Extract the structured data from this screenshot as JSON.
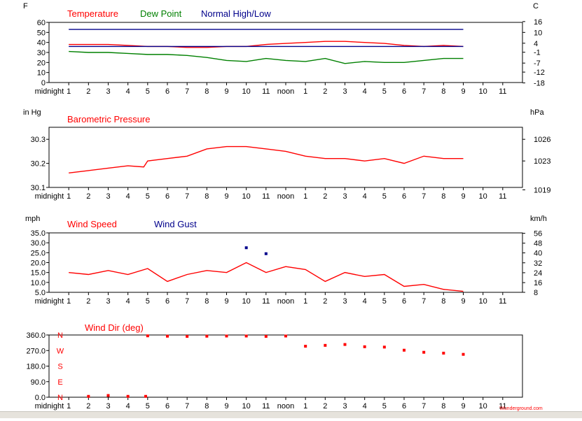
{
  "chart_data": [
    {
      "type": "line",
      "title": "",
      "left_unit": "F",
      "right_unit": "C",
      "ylim": [
        0,
        60
      ],
      "y_ticks": [
        0,
        10,
        20,
        30,
        40,
        50,
        60
      ],
      "y_tick_labels": [
        "0",
        "10",
        "20",
        "30",
        "40",
        "50",
        "60"
      ],
      "right_ticks": [
        {
          "label": "16",
          "value": 60.8
        },
        {
          "label": "10",
          "value": 50
        },
        {
          "label": "4",
          "value": 39.2
        },
        {
          "label": "-1",
          "value": 30.2
        },
        {
          "label": "-7",
          "value": 19.4
        },
        {
          "label": "-12",
          "value": 10.4
        },
        {
          "label": "-18",
          "value": -0.4
        }
      ],
      "legend": [
        {
          "label": "Temperature",
          "color": "#ff0000"
        },
        {
          "label": "Dew Point",
          "color": "#008000"
        },
        {
          "label": "Normal High/Low",
          "color": "#00008b"
        }
      ],
      "series": [
        {
          "name": "Temperature",
          "color": "#ff0000",
          "x": [
            1,
            2,
            3,
            4,
            5,
            6,
            7,
            8,
            9,
            10,
            11,
            12,
            13,
            14,
            15,
            16,
            17,
            18,
            19,
            20,
            21
          ],
          "values": [
            38,
            38,
            38,
            37,
            36,
            36,
            35,
            35,
            36,
            36,
            38,
            39,
            40,
            41,
            41,
            40,
            39,
            37,
            36,
            37,
            36
          ]
        },
        {
          "name": "Dew Point",
          "color": "#008000",
          "x": [
            1,
            2,
            3,
            4,
            5,
            6,
            7,
            8,
            9,
            10,
            11,
            12,
            13,
            14,
            15,
            16,
            17,
            18,
            19,
            20,
            21
          ],
          "values": [
            31,
            30,
            30,
            29,
            28,
            28,
            27,
            25,
            22,
            21,
            24,
            22,
            21,
            24,
            19,
            21,
            20,
            20,
            22,
            24,
            24
          ]
        },
        {
          "name": "Normal High",
          "color": "#00008b",
          "x": [
            1,
            21
          ],
          "values": [
            53,
            53
          ]
        },
        {
          "name": "Normal Low",
          "color": "#00008b",
          "x": [
            1,
            21
          ],
          "values": [
            36,
            36
          ]
        }
      ]
    },
    {
      "type": "line",
      "title": "",
      "left_unit": "in Hg",
      "right_unit": "hPa",
      "ylim": [
        30.1,
        30.35
      ],
      "y_ticks": [
        30.1,
        30.2,
        30.3
      ],
      "y_tick_labels": [
        "30.1",
        "30.2",
        "30.3"
      ],
      "right_ticks": [
        {
          "label": "1026",
          "value": 30.3
        },
        {
          "label": "1023",
          "value": 30.21
        },
        {
          "label": "1019",
          "value": 30.09
        }
      ],
      "legend": [
        {
          "label": "Barometric Pressure",
          "color": "#ff0000"
        }
      ],
      "series": [
        {
          "name": "Barometric Pressure",
          "color": "#ff0000",
          "x": [
            1,
            2,
            3,
            4,
            4.8,
            5,
            6,
            7,
            8,
            9,
            10,
            11,
            12,
            13,
            14,
            15,
            16,
            17,
            18,
            19,
            20,
            21
          ],
          "values": [
            30.16,
            30.17,
            30.18,
            30.19,
            30.185,
            30.21,
            30.22,
            30.23,
            30.26,
            30.27,
            30.27,
            30.26,
            30.25,
            30.23,
            30.22,
            30.22,
            30.21,
            30.22,
            30.2,
            30.23,
            30.22,
            30.22
          ]
        }
      ]
    },
    {
      "type": "line",
      "title": "",
      "left_unit": "mph",
      "right_unit": "km/h",
      "ylim": [
        5,
        35
      ],
      "y_ticks": [
        5,
        10,
        15,
        20,
        25,
        30,
        35
      ],
      "y_tick_labels": [
        "5.0",
        "10.0",
        "15.0",
        "20.0",
        "25.0",
        "30.0",
        "35.0"
      ],
      "right_ticks": [
        {
          "label": "56",
          "value": 34.8
        },
        {
          "label": "48",
          "value": 29.8
        },
        {
          "label": "40",
          "value": 24.9
        },
        {
          "label": "32",
          "value": 19.9
        },
        {
          "label": "24",
          "value": 14.9
        },
        {
          "label": "16",
          "value": 9.9
        },
        {
          "label": "8",
          "value": 5.0
        }
      ],
      "legend": [
        {
          "label": "Wind Speed",
          "color": "#ff0000"
        },
        {
          "label": "Wind Gust",
          "color": "#00008b"
        }
      ],
      "series": [
        {
          "name": "Wind Speed",
          "color": "#ff0000",
          "x": [
            1,
            2,
            3,
            4,
            5,
            6,
            7,
            8,
            9,
            10,
            11,
            12,
            13,
            14,
            15,
            16,
            17,
            18,
            19,
            20,
            21
          ],
          "values": [
            15,
            14,
            16,
            14,
            17,
            10.5,
            14,
            16,
            15,
            20,
            15,
            18,
            16.5,
            10.5,
            15,
            13,
            14,
            8,
            9,
            6.5,
            5.5
          ]
        },
        {
          "name": "Wind Gust",
          "color": "#00008b",
          "markers_only": true,
          "x": [
            10,
            11
          ],
          "values": [
            27.5,
            24.5
          ]
        }
      ]
    },
    {
      "type": "scatter",
      "title": "",
      "ylim": [
        0,
        360
      ],
      "y_ticks": [
        0,
        90,
        180,
        270,
        360
      ],
      "y_tick_labels": [
        "0.0",
        "90.0",
        "180.0",
        "270.0",
        "360.0"
      ],
      "compass_labels": [
        {
          "label": "N",
          "value": 360
        },
        {
          "label": "W",
          "value": 270
        },
        {
          "label": "S",
          "value": 180
        },
        {
          "label": "E",
          "value": 90
        },
        {
          "label": "N",
          "value": 0
        }
      ],
      "legend": [
        {
          "label": "Wind Dir (deg)",
          "color": "#ff0000"
        }
      ],
      "series": [
        {
          "name": "Wind Dir (deg)",
          "color": "#ff0000",
          "x": [
            2,
            3,
            4,
            4.9,
            5,
            6,
            7,
            8,
            9,
            10,
            11,
            12,
            13,
            14,
            15,
            16,
            17,
            18,
            19,
            20,
            21
          ],
          "values": [
            5,
            10,
            5,
            5,
            355,
            353,
            352,
            353,
            354,
            354,
            352,
            354,
            295,
            300,
            305,
            292,
            290,
            272,
            260,
            255,
            248
          ]
        }
      ]
    }
  ],
  "x_axis": {
    "range": [
      0,
      24
    ],
    "ticks": [
      {
        "x": 1,
        "label": "1"
      },
      {
        "x": 2,
        "label": "2"
      },
      {
        "x": 3,
        "label": "3"
      },
      {
        "x": 4,
        "label": "4"
      },
      {
        "x": 5,
        "label": "5"
      },
      {
        "x": 6,
        "label": "6"
      },
      {
        "x": 7,
        "label": "7"
      },
      {
        "x": 8,
        "label": "8"
      },
      {
        "x": 9,
        "label": "9"
      },
      {
        "x": 10,
        "label": "10"
      },
      {
        "x": 11,
        "label": "11"
      },
      {
        "x": 12,
        "label": "noon"
      },
      {
        "x": 13,
        "label": "1"
      },
      {
        "x": 14,
        "label": "2"
      },
      {
        "x": 15,
        "label": "3"
      },
      {
        "x": 16,
        "label": "4"
      },
      {
        "x": 17,
        "label": "5"
      },
      {
        "x": 18,
        "label": "6"
      },
      {
        "x": 19,
        "label": "7"
      },
      {
        "x": 20,
        "label": "8"
      },
      {
        "x": 21,
        "label": "9"
      },
      {
        "x": 22,
        "label": "10"
      },
      {
        "x": 23,
        "label": "11"
      }
    ],
    "start_label": "midnight"
  },
  "watermark": "Wunderground.com"
}
